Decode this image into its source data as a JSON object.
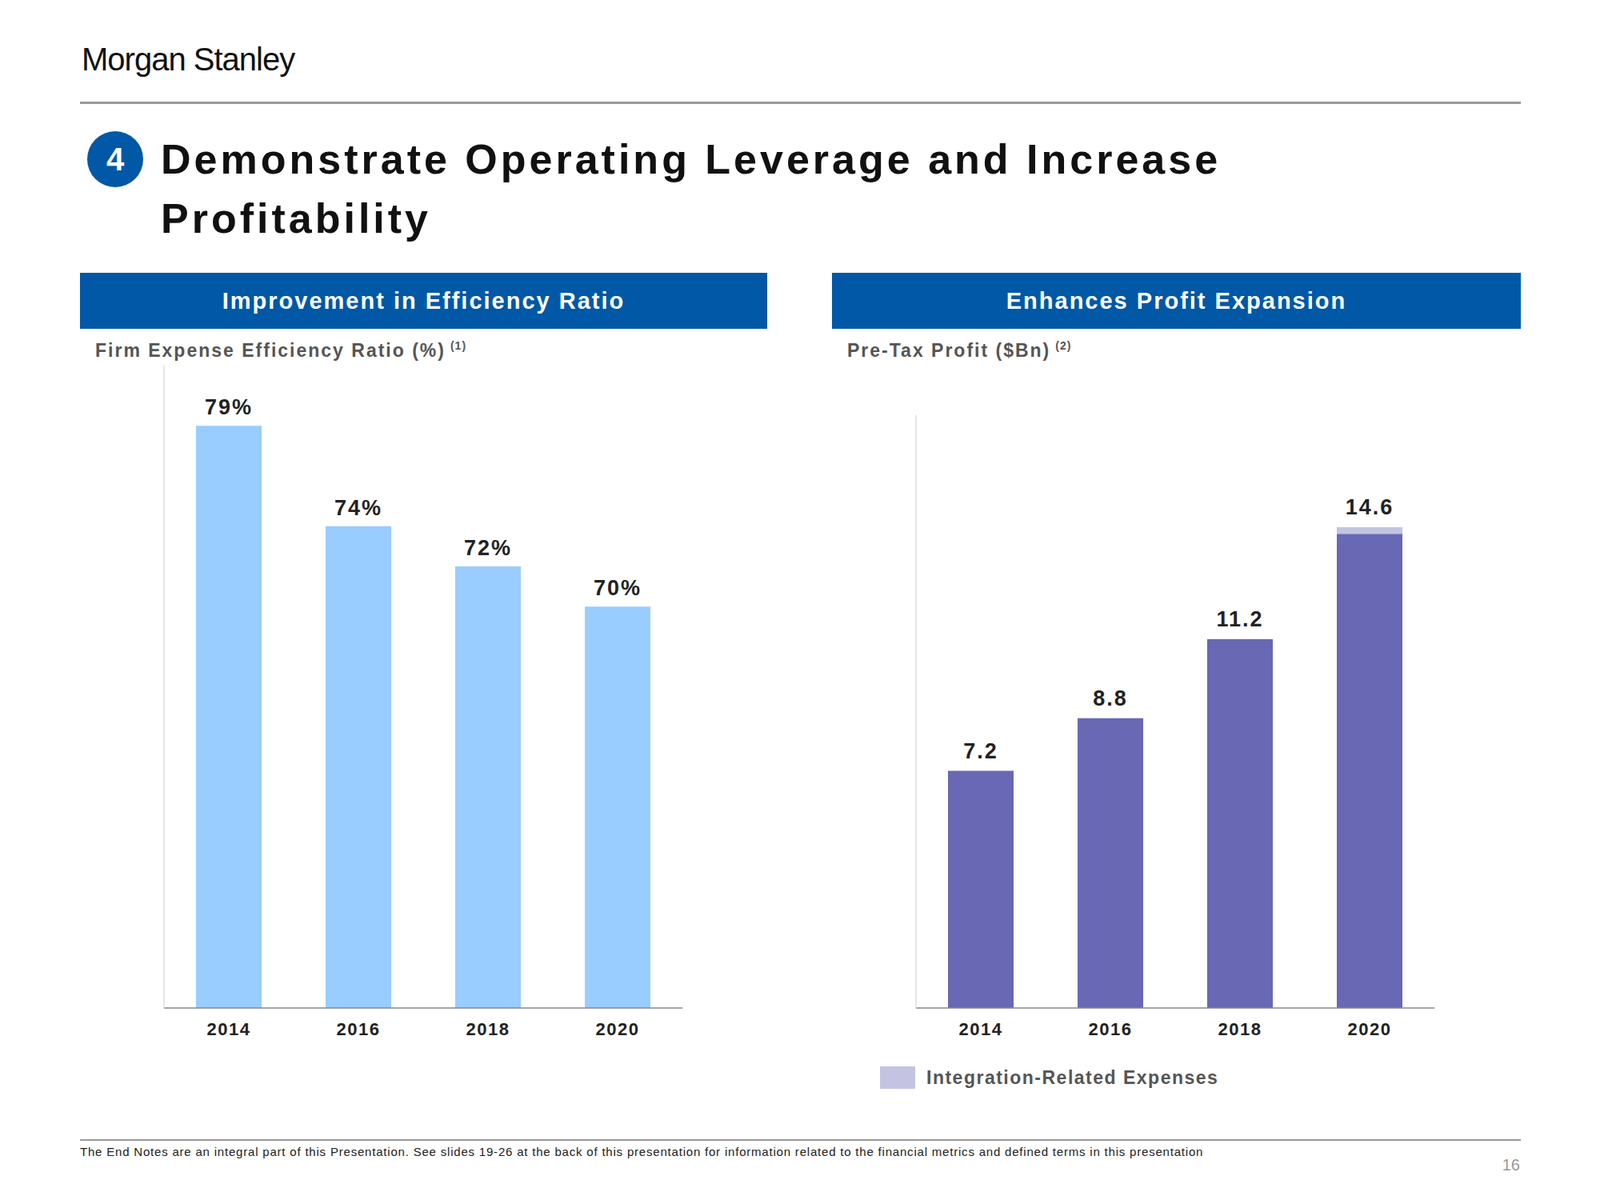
{
  "page": {
    "logo": "Morgan Stanley",
    "section_number": "4",
    "title": "Demonstrate Operating Leverage and Increase Profitability",
    "footnote": "The End Notes are an integral part of this Presentation. See slides 19-26 at the back of this presentation for information related to the financial metrics and defined terms in this presentation",
    "page_number": "16"
  },
  "chart_data": [
    {
      "type": "bar",
      "header": "Improvement in Efficiency Ratio",
      "title": "Firm Expense Efficiency Ratio (%)",
      "title_note": "(1)",
      "categories": [
        "2014",
        "2016",
        "2018",
        "2020"
      ],
      "values": [
        79,
        74,
        72,
        70
      ],
      "value_labels": [
        "79%",
        "74%",
        "72%",
        "70%"
      ],
      "color": "#99ccff",
      "ylim": [
        50,
        82
      ],
      "yticks": [],
      "data_labels": true,
      "tick_labels": "x",
      "grid": false
    },
    {
      "type": "bar",
      "stacked": true,
      "header": "Enhances Profit Expansion",
      "title": "Pre-Tax Profit ($Bn)",
      "title_note": "(2)",
      "categories": [
        "2014",
        "2016",
        "2018",
        "2020"
      ],
      "series": [
        {
          "color": "#6868b4",
          "values": [
            7.2,
            8.8,
            11.2,
            14.4
          ]
        },
        {
          "name": "Integration-Related Expenses",
          "color": "#c4c4e2",
          "values": [
            null,
            null,
            null,
            0.2
          ]
        }
      ],
      "totals": [
        7.2,
        8.8,
        11.2,
        14.6
      ],
      "ylim": [
        0,
        18
      ],
      "yticks": [],
      "tick_labels": "x",
      "grid": false
    }
  ]
}
